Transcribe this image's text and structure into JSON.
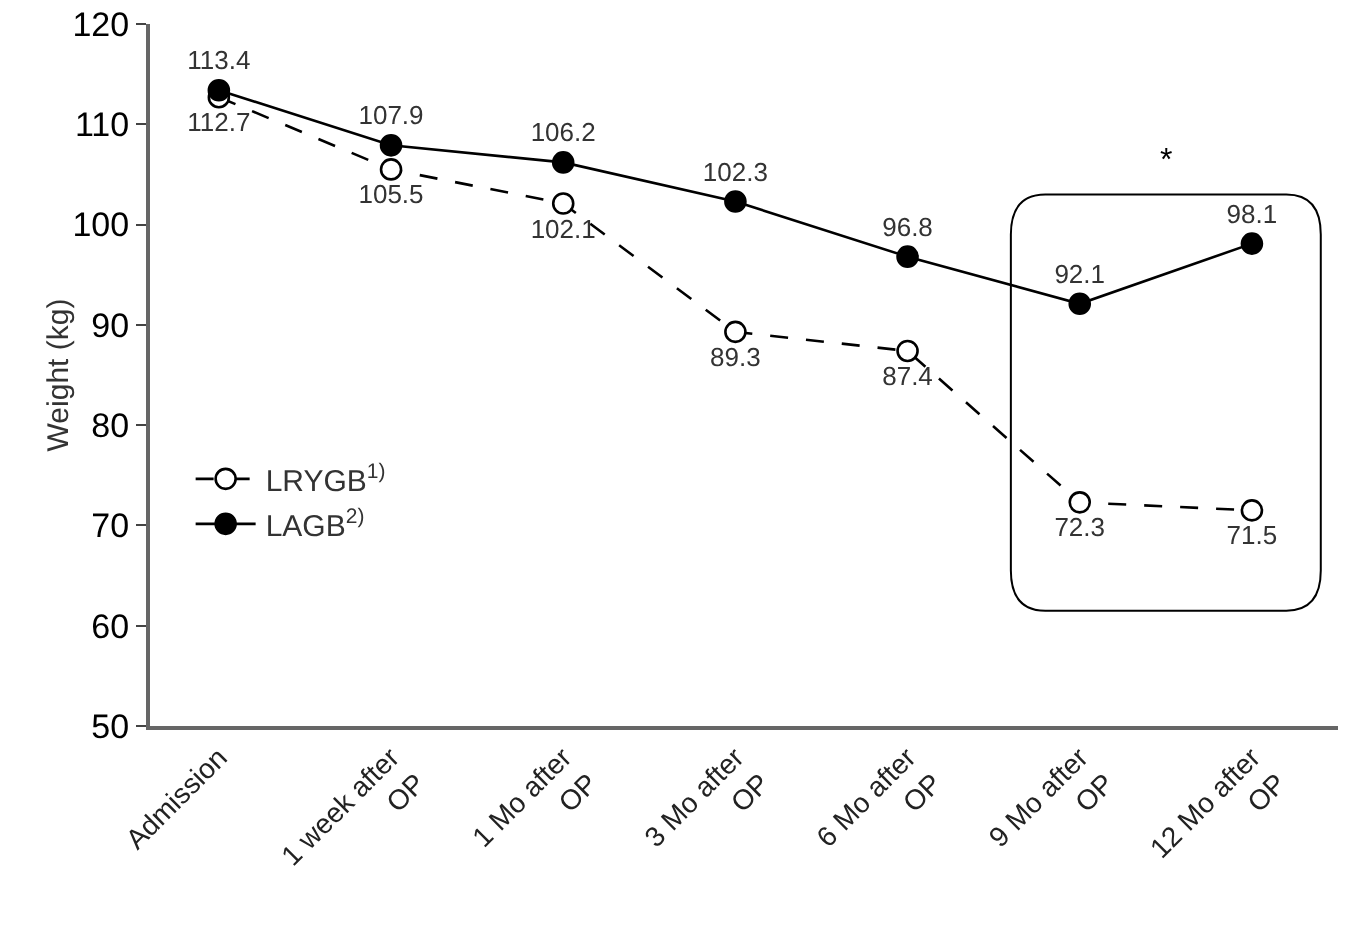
{
  "chart_data": {
    "type": "line",
    "ylabel": "Weight (kg)",
    "categories": [
      "Admission",
      "1 week after OP",
      "1 Mo after OP",
      "3 Mo after OP",
      "6 Mo after OP",
      "9 Mo after OP",
      "12 Mo after OP"
    ],
    "series": [
      {
        "name": "LRYGB$^{1)}$",
        "color": "#000000",
        "line_style": "dashed",
        "values": [
          112.7,
          105.5,
          102.1,
          89.3,
          87.4,
          72.3,
          71.5
        ]
      },
      {
        "name": "LAGB$^{2)}$",
        "color": "#000000",
        "line_style": "solid",
        "values": [
          113.4,
          107.9,
          106.2,
          102.3,
          96.8,
          92.1,
          98.1
        ]
      }
    ],
    "ylim": [
      50,
      120
    ],
    "yticks": [
      50,
      60,
      70,
      80,
      90,
      100,
      110,
      120
    ],
    "marker": "circle",
    "data_labels": true,
    "legend": "left",
    "grid": false,
    "annotations": [
      "*"
    ]
  }
}
